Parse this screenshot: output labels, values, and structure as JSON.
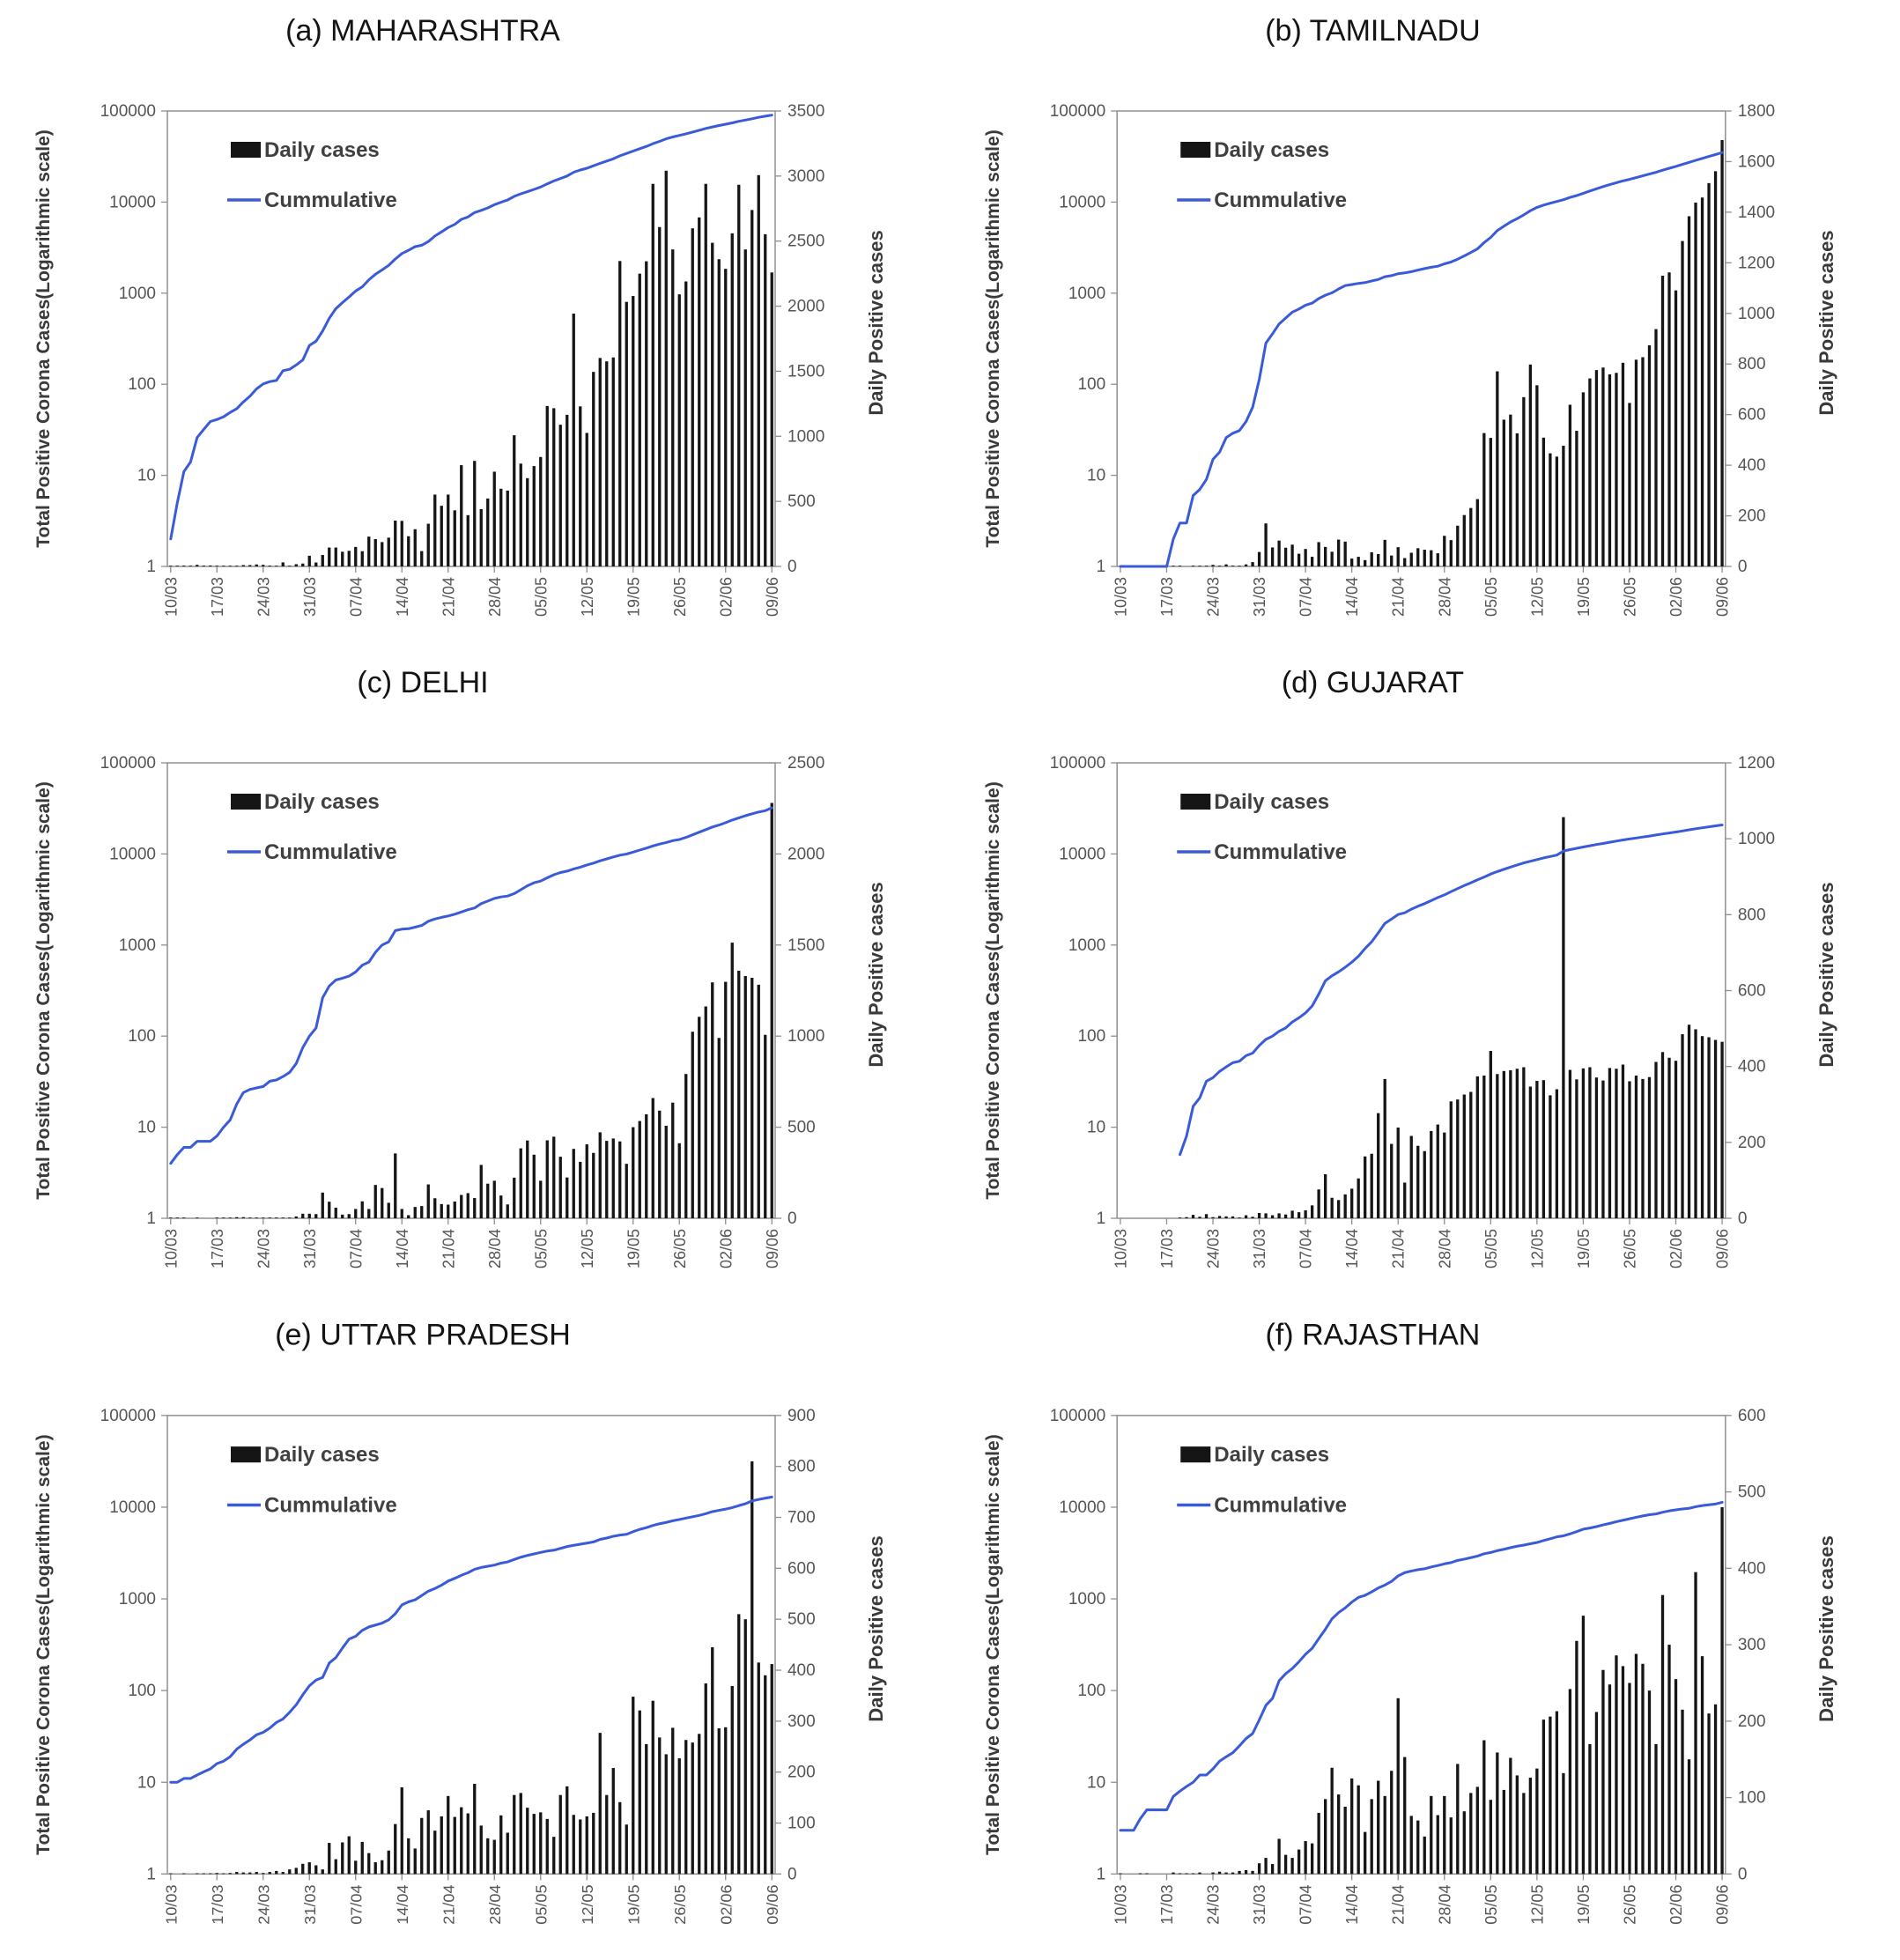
{
  "figure": {
    "left_axis_label": "Total Positive Corona Cases(Logarithmic scale)",
    "right_axis_label": "Daily  Positive cases",
    "legend": {
      "daily": "Daily cases",
      "cumulative": "Cummulative"
    },
    "left_axis_ticks": [
      1,
      10,
      100,
      1000,
      10000,
      100000
    ],
    "x_tick_labels": [
      "10/03",
      "17/03",
      "24/03",
      "31/03",
      "07/04",
      "14/04",
      "21/04",
      "28/04",
      "05/05",
      "12/05",
      "19/05",
      "26/05",
      "02/06",
      "09/06"
    ],
    "x_tick_interval": 7,
    "days": 92,
    "colors": {
      "cumulative_line": "#3a5bd9",
      "daily_bar": "#151515",
      "axis": "#909090",
      "tick_text": "#555555",
      "axis_title_text": "#3a3a3a",
      "legend_text": "#404040",
      "title_text": "#141414"
    }
  },
  "chart_data": [
    {
      "panel": "a",
      "state": "MAHARASHTRA",
      "title": "(a)  MAHARASHTRA",
      "type": "bar+line",
      "left_axis_range": [
        1,
        100000
      ],
      "right_axis_max": 3500,
      "right_axis_step": 500,
      "cumulative_start": 0,
      "line_start_index": 0,
      "daily_values": [
        2,
        3,
        6,
        3,
        12,
        6,
        7,
        2,
        3,
        5,
        5,
        10,
        10,
        15,
        12,
        6,
        3,
        31,
        5,
        17,
        22,
        82,
        30,
        88,
        145,
        145,
        113,
        120,
        150,
        117,
        229,
        210,
        187,
        221,
        352,
        350,
        232,
        286,
        118,
        328,
        552,
        466,
        552,
        431,
        778,
        394,
        811,
        440,
        522,
        728,
        597,
        583,
        1008,
        790,
        678,
        771,
        841,
        1233,
        1216,
        1089,
        1165,
        1943,
        1230,
        1026,
        1495,
        1602,
        1576,
        1606,
        2347,
        2033,
        2078,
        2250,
        2345,
        2940,
        2608,
        3041,
        2436,
        2091,
        2190,
        2598,
        2682,
        2940,
        2487,
        2361,
        2287,
        2560,
        2933,
        2436,
        2739,
        3007,
        2553,
        2259
      ]
    },
    {
      "panel": "b",
      "state": "TAMILNADU",
      "title": "(b) TAMILNADU",
      "type": "bar+line",
      "left_axis_range": [
        1,
        100000
      ],
      "right_axis_max": 1800,
      "right_axis_step": 200,
      "cumulative_start": 1,
      "line_start_index": 0,
      "daily_values": [
        0,
        0,
        0,
        0,
        0,
        0,
        0,
        0,
        1,
        1,
        0,
        3,
        1,
        2,
        6,
        3,
        8,
        3,
        2,
        8,
        17,
        57,
        170,
        75,
        102,
        74,
        86,
        50,
        69,
        38,
        96,
        77,
        58,
        106,
        98,
        31,
        38,
        25,
        56,
        49,
        105,
        43,
        76,
        33,
        54,
        72,
        66,
        64,
        52,
        121,
        104,
        161,
        203,
        231,
        266,
        527,
        508,
        771,
        580,
        600,
        526,
        669,
        798,
        716,
        509,
        447,
        434,
        477,
        639,
        536,
        688,
        743,
        776,
        786,
        759,
        765,
        805,
        646,
        817,
        827,
        874,
        938,
        1149,
        1162,
        1091,
        1286,
        1384,
        1438,
        1458,
        1515,
        1562,
        1685
      ]
    },
    {
      "panel": "c",
      "state": "DELHI",
      "title": "(c) DELHI",
      "type": "bar+line",
      "left_axis_range": [
        1,
        100000
      ],
      "right_axis_max": 2500,
      "right_axis_step": 500,
      "cumulative_start": 3,
      "line_start_index": 0,
      "daily_values": [
        1,
        1,
        1,
        0,
        1,
        0,
        0,
        1,
        2,
        2,
        6,
        6,
        2,
        1,
        1,
        4,
        1,
        3,
        4,
        10,
        25,
        25,
        23,
        141,
        91,
        58,
        20,
        23,
        51,
        93,
        51,
        183,
        166,
        85,
        356,
        51,
        17,
        62,
        67,
        186,
        110,
        78,
        75,
        92,
        128,
        138,
        111,
        293,
        190,
        206,
        125,
        76,
        223,
        384,
        427,
        349,
        206,
        428,
        448,
        338,
        224,
        381,
        310,
        406,
        359,
        472,
        425,
        438,
        422,
        299,
        500,
        534,
        571,
        660,
        591,
        508,
        635,
        412,
        792,
        1024,
        1106,
        1163,
        1295,
        990,
        1298,
        1513,
        1359,
        1330,
        1320,
        1282,
        1007,
        2280
      ]
    },
    {
      "panel": "d",
      "state": "GUJARAT",
      "title": "(d) GUJARAT",
      "type": "bar+line",
      "left_axis_range": [
        1,
        100000
      ],
      "right_axis_max": 1200,
      "right_axis_step": 200,
      "cumulative_start": 3,
      "line_start_index": 9,
      "daily_values": [
        0,
        0,
        0,
        0,
        0,
        0,
        0,
        0,
        0,
        2,
        3,
        9,
        4,
        11,
        3,
        6,
        5,
        5,
        2,
        8,
        4,
        14,
        13,
        8,
        13,
        10,
        20,
        16,
        21,
        34,
        76,
        116,
        54,
        48,
        63,
        78,
        105,
        163,
        170,
        277,
        367,
        196,
        239,
        94,
        217,
        191,
        177,
        230,
        247,
        226,
        308,
        313,
        326,
        333,
        374,
        376,
        441,
        380,
        388,
        390,
        394,
        398,
        347,
        362,
        364,
        324,
        340,
        1057,
        391,
        366,
        395,
        398,
        371,
        363,
        396,
        394,
        405,
        361,
        376,
        367,
        372,
        412,
        438,
        423,
        415,
        485,
        510,
        498,
        480,
        477,
        470,
        465
      ]
    },
    {
      "panel": "e",
      "state": "UTTAR PRADESH",
      "title": "(e)  UTTAR PRADESH",
      "type": "bar+line",
      "left_axis_range": [
        1,
        100000
      ],
      "right_axis_max": 900,
      "right_axis_step": 100,
      "cumulative_start": 9,
      "line_start_index": 0,
      "daily_values": [
        1,
        0,
        1,
        0,
        1,
        1,
        1,
        2,
        1,
        2,
        4,
        3,
        3,
        4,
        2,
        4,
        6,
        4,
        9,
        12,
        20,
        23,
        17,
        9,
        61,
        29,
        62,
        74,
        26,
        63,
        41,
        23,
        27,
        46,
        98,
        170,
        70,
        50,
        110,
        125,
        85,
        113,
        153,
        112,
        131,
        119,
        177,
        95,
        70,
        67,
        115,
        81,
        155,
        159,
        130,
        118,
        121,
        108,
        73,
        155,
        172,
        116,
        107,
        113,
        120,
        277,
        155,
        208,
        141,
        97,
        348,
        321,
        255,
        340,
        268,
        235,
        287,
        227,
        263,
        258,
        275,
        374,
        445,
        286,
        288,
        369,
        510,
        500,
        810,
        415,
        390,
        412
      ]
    },
    {
      "panel": "f",
      "state": "RAJASTHAN",
      "title": "(f)  RAJASTHAN",
      "type": "bar+line",
      "left_axis_range": [
        1,
        100000
      ],
      "right_axis_max": 600,
      "right_axis_step": 100,
      "cumulative_start": 2,
      "line_start_index": 0,
      "daily_values": [
        1,
        0,
        0,
        1,
        1,
        0,
        0,
        0,
        2,
        1,
        1,
        1,
        2,
        0,
        2,
        3,
        2,
        2,
        4,
        5,
        4,
        14,
        21,
        13,
        46,
        25,
        21,
        32,
        43,
        40,
        80,
        98,
        139,
        104,
        88,
        125,
        116,
        55,
        98,
        122,
        102,
        135,
        230,
        153,
        76,
        70,
        49,
        102,
        77,
        102,
        74,
        144,
        82,
        106,
        114,
        175,
        97,
        159,
        110,
        152,
        129,
        106,
        126,
        138,
        202,
        206,
        213,
        132,
        242,
        305,
        338,
        170,
        212,
        267,
        248,
        286,
        272,
        250,
        288,
        275,
        240,
        170,
        365,
        300,
        255,
        215,
        150,
        395,
        285,
        210,
        222,
        480
      ]
    }
  ]
}
